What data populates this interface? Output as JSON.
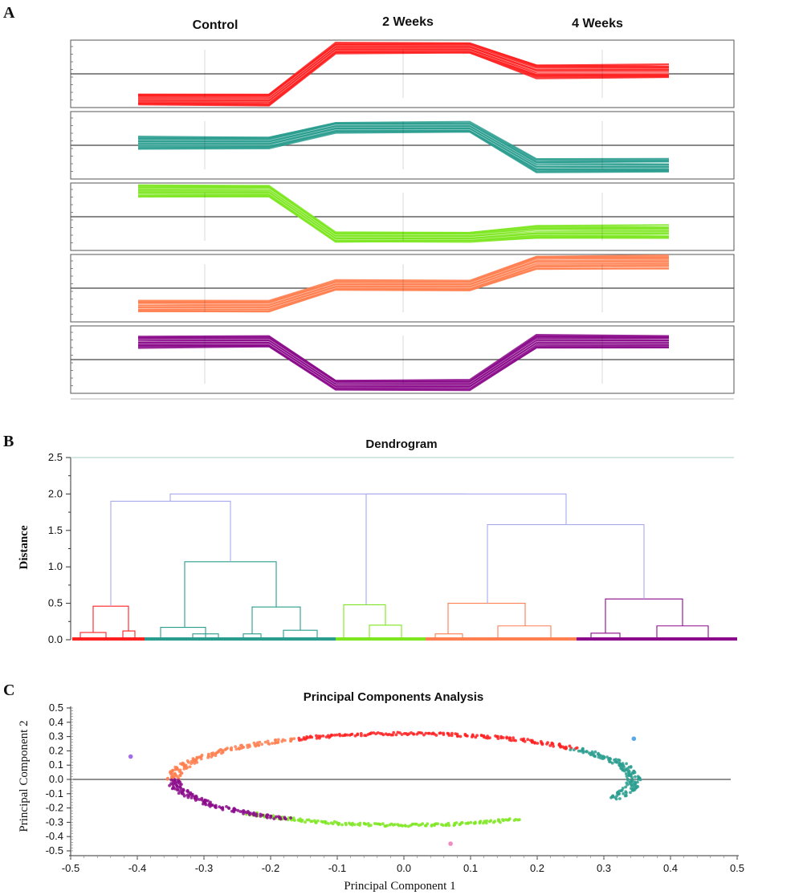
{
  "figure": {
    "panel_a_label": "A",
    "panel_b_label": "B",
    "panel_c_label": "C"
  },
  "colors": {
    "red": "#ff2020",
    "teal": "#2a9d8f",
    "lime": "#7ee621",
    "salmon": "#ff7f50",
    "purple": "#8b0a8b",
    "link": "#a9a9ee",
    "axis": "#333333",
    "frame": "#555555",
    "pca_outlier_blue": "#5aa9e6",
    "pca_outlier_violet": "#a26bea",
    "pca_outlier_pink": "#f08cbf"
  },
  "chart_data": [
    {
      "type": "line",
      "panel": "A",
      "columns": [
        "Control",
        "2 Weeks",
        "4 Weeks"
      ],
      "series": [
        {
          "color": "red",
          "control": 0.0,
          "week2": 1.0,
          "week4": 0.55
        },
        {
          "color": "teal",
          "control": 0.55,
          "week2": 0.85,
          "week4": 0.1
        },
        {
          "color": "lime",
          "control": 1.0,
          "week2": 0.1,
          "week4": 0.2
        },
        {
          "color": "salmon",
          "control": 0.15,
          "week2": 0.55,
          "week4": 1.0
        },
        {
          "color": "purple",
          "control": 0.85,
          "week2": 0.0,
          "week4": 0.85
        }
      ]
    },
    {
      "type": "dendrogram",
      "panel": "B",
      "title": "Dendrogram",
      "ylabel": "Distance",
      "ylim": [
        0,
        2.5
      ],
      "yticks": [
        "0.0",
        "0.5",
        "1.0",
        "1.5",
        "2.0",
        "2.5"
      ],
      "merge_heights": {
        "root": 2.0,
        "left_pair": 1.9,
        "right_pair": 1.58,
        "red_cluster": 0.46,
        "teal_cluster": 1.07,
        "lime_cluster": 0.48,
        "salmon_cluster": 0.5,
        "purple_cluster": 0.56
      }
    },
    {
      "type": "scatter",
      "panel": "C",
      "title": "Principal Components Analysis",
      "xlabel": "Principal Component 1",
      "ylabel": "Principal Component 2",
      "xlim": [
        -0.5,
        0.5
      ],
      "ylim": [
        -0.5,
        0.5
      ],
      "xticks": [
        "-0.5",
        "-0.4",
        "-0.3",
        "-0.2",
        "-0.1",
        "0.0",
        "0.1",
        "0.2",
        "0.3",
        "0.4",
        "0.5"
      ],
      "yticks": [
        "0.5",
        "0.4",
        "0.3",
        "0.2",
        "0.1",
        "0.0",
        "-0.1",
        "-0.2",
        "-0.3",
        "-0.4",
        "-0.5"
      ],
      "ellipse": {
        "center_pc1": 0.0,
        "center_pc2": 0.0,
        "radius_pc1": 0.345,
        "radius_pc2": 0.32
      },
      "groups": [
        {
          "color": "red",
          "angle_from_deg": 42,
          "angle_to_deg": 118
        },
        {
          "color": "teal",
          "angle_from_deg": -25,
          "angle_to_deg": 42
        },
        {
          "color": "lime",
          "angle_from_deg": 228,
          "angle_to_deg": 300
        },
        {
          "color": "salmon",
          "angle_from_deg": 118,
          "angle_to_deg": 180
        },
        {
          "color": "purple",
          "angle_from_deg": 180,
          "angle_to_deg": 240
        }
      ],
      "outliers": [
        {
          "pc1": 0.345,
          "pc2": 0.285,
          "color": "pca_outlier_blue"
        },
        {
          "pc1": -0.41,
          "pc2": 0.16,
          "color": "pca_outlier_violet"
        },
        {
          "pc1": 0.07,
          "pc2": -0.45,
          "color": "pca_outlier_pink"
        }
      ]
    }
  ]
}
